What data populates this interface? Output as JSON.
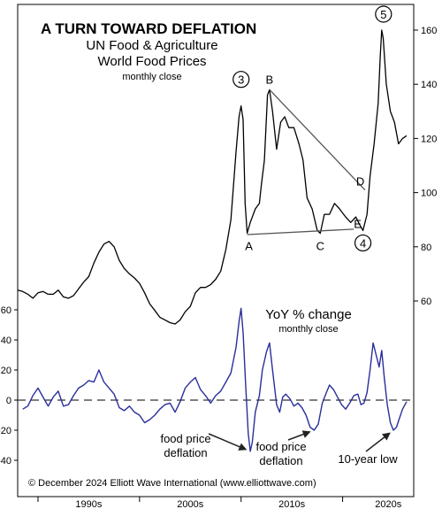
{
  "chart_data": [
    {
      "type": "line",
      "title": "A TURN TOWARD DEFLATION",
      "subtitle_lines": [
        "UN Food & Agriculture",
        "World Food Prices"
      ],
      "subtitle_note": "monthly close",
      "yticks": [
        60,
        80,
        100,
        120,
        140,
        160
      ],
      "ylim": [
        56,
        167
      ],
      "xlim": [
        1986.5,
        2025.5
      ],
      "color": "#000000",
      "series": [
        {
          "points": [
            [
              1986.5,
              64
            ],
            [
              1987.0,
              63.5
            ],
            [
              1987.5,
              62.5
            ],
            [
              1988.0,
              61
            ],
            [
              1988.5,
              63
            ],
            [
              1989.0,
              63.5
            ],
            [
              1989.5,
              62.5
            ],
            [
              1990.0,
              62.5
            ],
            [
              1990.5,
              64
            ],
            [
              1991.0,
              61.5
            ],
            [
              1991.5,
              61
            ],
            [
              1992.0,
              62
            ],
            [
              1992.5,
              64.5
            ],
            [
              1993.0,
              67
            ],
            [
              1993.5,
              69
            ],
            [
              1994.0,
              74
            ],
            [
              1994.5,
              78
            ],
            [
              1995.0,
              81
            ],
            [
              1995.5,
              82
            ],
            [
              1996.0,
              80
            ],
            [
              1996.5,
              75
            ],
            [
              1997.0,
              72
            ],
            [
              1997.5,
              70
            ],
            [
              1998.0,
              68.5
            ],
            [
              1998.5,
              66.5
            ],
            [
              1999.0,
              63
            ],
            [
              1999.5,
              59
            ],
            [
              2000.0,
              56.5
            ],
            [
              2000.5,
              54
            ],
            [
              2001.0,
              53
            ],
            [
              2001.5,
              52
            ],
            [
              2002.0,
              51.5
            ],
            [
              2002.5,
              53
            ],
            [
              2003.0,
              56
            ],
            [
              2003.5,
              58
            ],
            [
              2004.0,
              63
            ],
            [
              2004.5,
              65
            ],
            [
              2005.0,
              65
            ],
            [
              2005.5,
              66
            ],
            [
              2006.0,
              68
            ],
            [
              2006.5,
              71
            ],
            [
              2007.0,
              79
            ],
            [
              2007.5,
              90
            ],
            [
              2008.0,
              115
            ],
            [
              2008.3,
              128
            ],
            [
              2008.5,
              132
            ],
            [
              2008.7,
              127
            ],
            [
              2008.9,
              96
            ],
            [
              2009.1,
              85
            ],
            [
              2009.4,
              89
            ],
            [
              2009.9,
              94
            ],
            [
              2010.3,
              96
            ],
            [
              2010.5,
              103
            ],
            [
              2010.8,
              112
            ],
            [
              2011.1,
              136
            ],
            [
              2011.3,
              138
            ],
            [
              2011.6,
              130
            ],
            [
              2012.0,
              116
            ],
            [
              2012.4,
              126
            ],
            [
              2012.8,
              128
            ],
            [
              2013.2,
              124
            ],
            [
              2013.7,
              124
            ],
            [
              2014.2,
              118
            ],
            [
              2014.6,
              112
            ],
            [
              2015.0,
              98
            ],
            [
              2015.5,
              94
            ],
            [
              2016.0,
              86
            ],
            [
              2016.3,
              85
            ],
            [
              2016.7,
              92
            ],
            [
              2017.2,
              92
            ],
            [
              2017.7,
              96
            ],
            [
              2018.2,
              94
            ],
            [
              2018.8,
              91
            ],
            [
              2019.3,
              89
            ],
            [
              2019.8,
              91
            ],
            [
              2020.2,
              88
            ],
            [
              2020.5,
              86
            ],
            [
              2020.9,
              92
            ],
            [
              2021.2,
              106
            ],
            [
              2021.6,
              118
            ],
            [
              2022.0,
              133
            ],
            [
              2022.2,
              150
            ],
            [
              2022.35,
              160
            ],
            [
              2022.5,
              157
            ],
            [
              2022.8,
              140
            ],
            [
              2023.2,
              130
            ],
            [
              2023.6,
              126
            ],
            [
              2024.0,
              118
            ],
            [
              2024.4,
              120
            ],
            [
              2024.8,
              121
            ]
          ]
        }
      ],
      "wave_labels": [
        {
          "label": "3",
          "circled": true,
          "x": 2008.5,
          "y": 132
        },
        {
          "label": "5",
          "circled": true,
          "x": 2022.35,
          "y": 160
        },
        {
          "label": "4",
          "circled": true,
          "x": 2020.5,
          "y": 86
        },
        {
          "label": "A",
          "circled": false,
          "x": 2009.1,
          "y": 85
        },
        {
          "label": "B",
          "circled": false,
          "x": 2011.3,
          "y": 138
        },
        {
          "label": "C",
          "circled": false,
          "x": 2016.3,
          "y": 85
        },
        {
          "label": "D",
          "circled": false,
          "x": 2020.5,
          "y": 100
        },
        {
          "label": "E",
          "circled": false,
          "x": 2020.5,
          "y": 86
        }
      ],
      "trendlines": [
        {
          "x1": 2009.1,
          "y1": 84.5,
          "x2": 2019.6,
          "y2": 86.5
        },
        {
          "x1": 2011.3,
          "y1": 138,
          "x2": 2020.7,
          "y2": 101
        }
      ]
    },
    {
      "type": "line",
      "title": "YoY % change",
      "subtitle_note": "monthly close",
      "yticks": [
        60,
        40,
        20,
        0,
        -20,
        -40
      ],
      "ylim": [
        -45,
        65
      ],
      "xlim": [
        1986.5,
        2025.5
      ],
      "xticks": [
        "1990s",
        "2000s",
        "2010s",
        "2020s"
      ],
      "color": "#2a2e9b",
      "series": [
        {
          "points": [
            [
              1987.0,
              -6
            ],
            [
              1987.5,
              -4
            ],
            [
              1988.0,
              3
            ],
            [
              1988.5,
              8
            ],
            [
              1989.0,
              2
            ],
            [
              1989.5,
              -4
            ],
            [
              1990.0,
              2
            ],
            [
              1990.5,
              6
            ],
            [
              1991.0,
              -4
            ],
            [
              1991.5,
              -3
            ],
            [
              1992.0,
              3
            ],
            [
              1992.5,
              8
            ],
            [
              1993.0,
              10
            ],
            [
              1993.5,
              13
            ],
            [
              1994.0,
              12
            ],
            [
              1994.5,
              20
            ],
            [
              1995.0,
              12
            ],
            [
              1995.5,
              8
            ],
            [
              1996.0,
              4
            ],
            [
              1996.5,
              -5
            ],
            [
              1997.0,
              -7
            ],
            [
              1997.5,
              -4
            ],
            [
              1998.0,
              -8
            ],
            [
              1998.5,
              -10
            ],
            [
              1999.0,
              -15
            ],
            [
              1999.5,
              -13
            ],
            [
              2000.0,
              -10
            ],
            [
              2000.5,
              -6
            ],
            [
              2001.0,
              -3
            ],
            [
              2001.5,
              -2
            ],
            [
              2002.0,
              -8
            ],
            [
              2002.5,
              -1
            ],
            [
              2003.0,
              8
            ],
            [
              2003.5,
              12
            ],
            [
              2004.0,
              15
            ],
            [
              2004.5,
              7
            ],
            [
              2005.0,
              3
            ],
            [
              2005.5,
              -2
            ],
            [
              2006.0,
              3
            ],
            [
              2006.5,
              6
            ],
            [
              2007.0,
              12
            ],
            [
              2007.5,
              18
            ],
            [
              2008.0,
              35
            ],
            [
              2008.3,
              52
            ],
            [
              2008.5,
              61
            ],
            [
              2008.7,
              45
            ],
            [
              2008.95,
              10
            ],
            [
              2009.2,
              -22
            ],
            [
              2009.4,
              -34
            ],
            [
              2009.6,
              -28
            ],
            [
              2009.9,
              -8
            ],
            [
              2010.3,
              3
            ],
            [
              2010.6,
              20
            ],
            [
              2011.0,
              32
            ],
            [
              2011.3,
              38
            ],
            [
              2011.6,
              20
            ],
            [
              2012.0,
              -3
            ],
            [
              2012.3,
              -8
            ],
            [
              2012.6,
              2
            ],
            [
              2012.9,
              4
            ],
            [
              2013.3,
              1
            ],
            [
              2013.7,
              -4
            ],
            [
              2014.1,
              -2
            ],
            [
              2014.5,
              -5
            ],
            [
              2014.9,
              -10
            ],
            [
              2015.3,
              -18
            ],
            [
              2015.7,
              -20
            ],
            [
              2016.1,
              -16
            ],
            [
              2016.5,
              -2
            ],
            [
              2016.9,
              5
            ],
            [
              2017.2,
              10
            ],
            [
              2017.6,
              7
            ],
            [
              2018.0,
              2
            ],
            [
              2018.4,
              -3
            ],
            [
              2018.8,
              -6
            ],
            [
              2019.2,
              -2
            ],
            [
              2019.6,
              3
            ],
            [
              2020.0,
              4
            ],
            [
              2020.3,
              -3
            ],
            [
              2020.6,
              -2
            ],
            [
              2020.9,
              5
            ],
            [
              2021.2,
              20
            ],
            [
              2021.5,
              38
            ],
            [
              2021.8,
              30
            ],
            [
              2022.1,
              22
            ],
            [
              2022.35,
              33
            ],
            [
              2022.6,
              15
            ],
            [
              2022.9,
              -3
            ],
            [
              2023.2,
              -15
            ],
            [
              2023.5,
              -20
            ],
            [
              2023.8,
              -18
            ],
            [
              2024.1,
              -12
            ],
            [
              2024.4,
              -6
            ],
            [
              2024.8,
              -1
            ]
          ]
        }
      ],
      "annotations": [
        {
          "lines": [
            "food price",
            "deflation"
          ],
          "arrow_to": [
            2009.4,
            -34
          ]
        },
        {
          "lines": [
            "food price",
            "deflation"
          ],
          "arrow_to": [
            2015.7,
            -20
          ]
        },
        {
          "lines": [
            "10-year low"
          ],
          "arrow_to": [
            2023.5,
            -20
          ]
        }
      ]
    }
  ],
  "footer": {
    "copyright": "© December 2024 Elliott Wave International (www.elliottwave.com)"
  }
}
